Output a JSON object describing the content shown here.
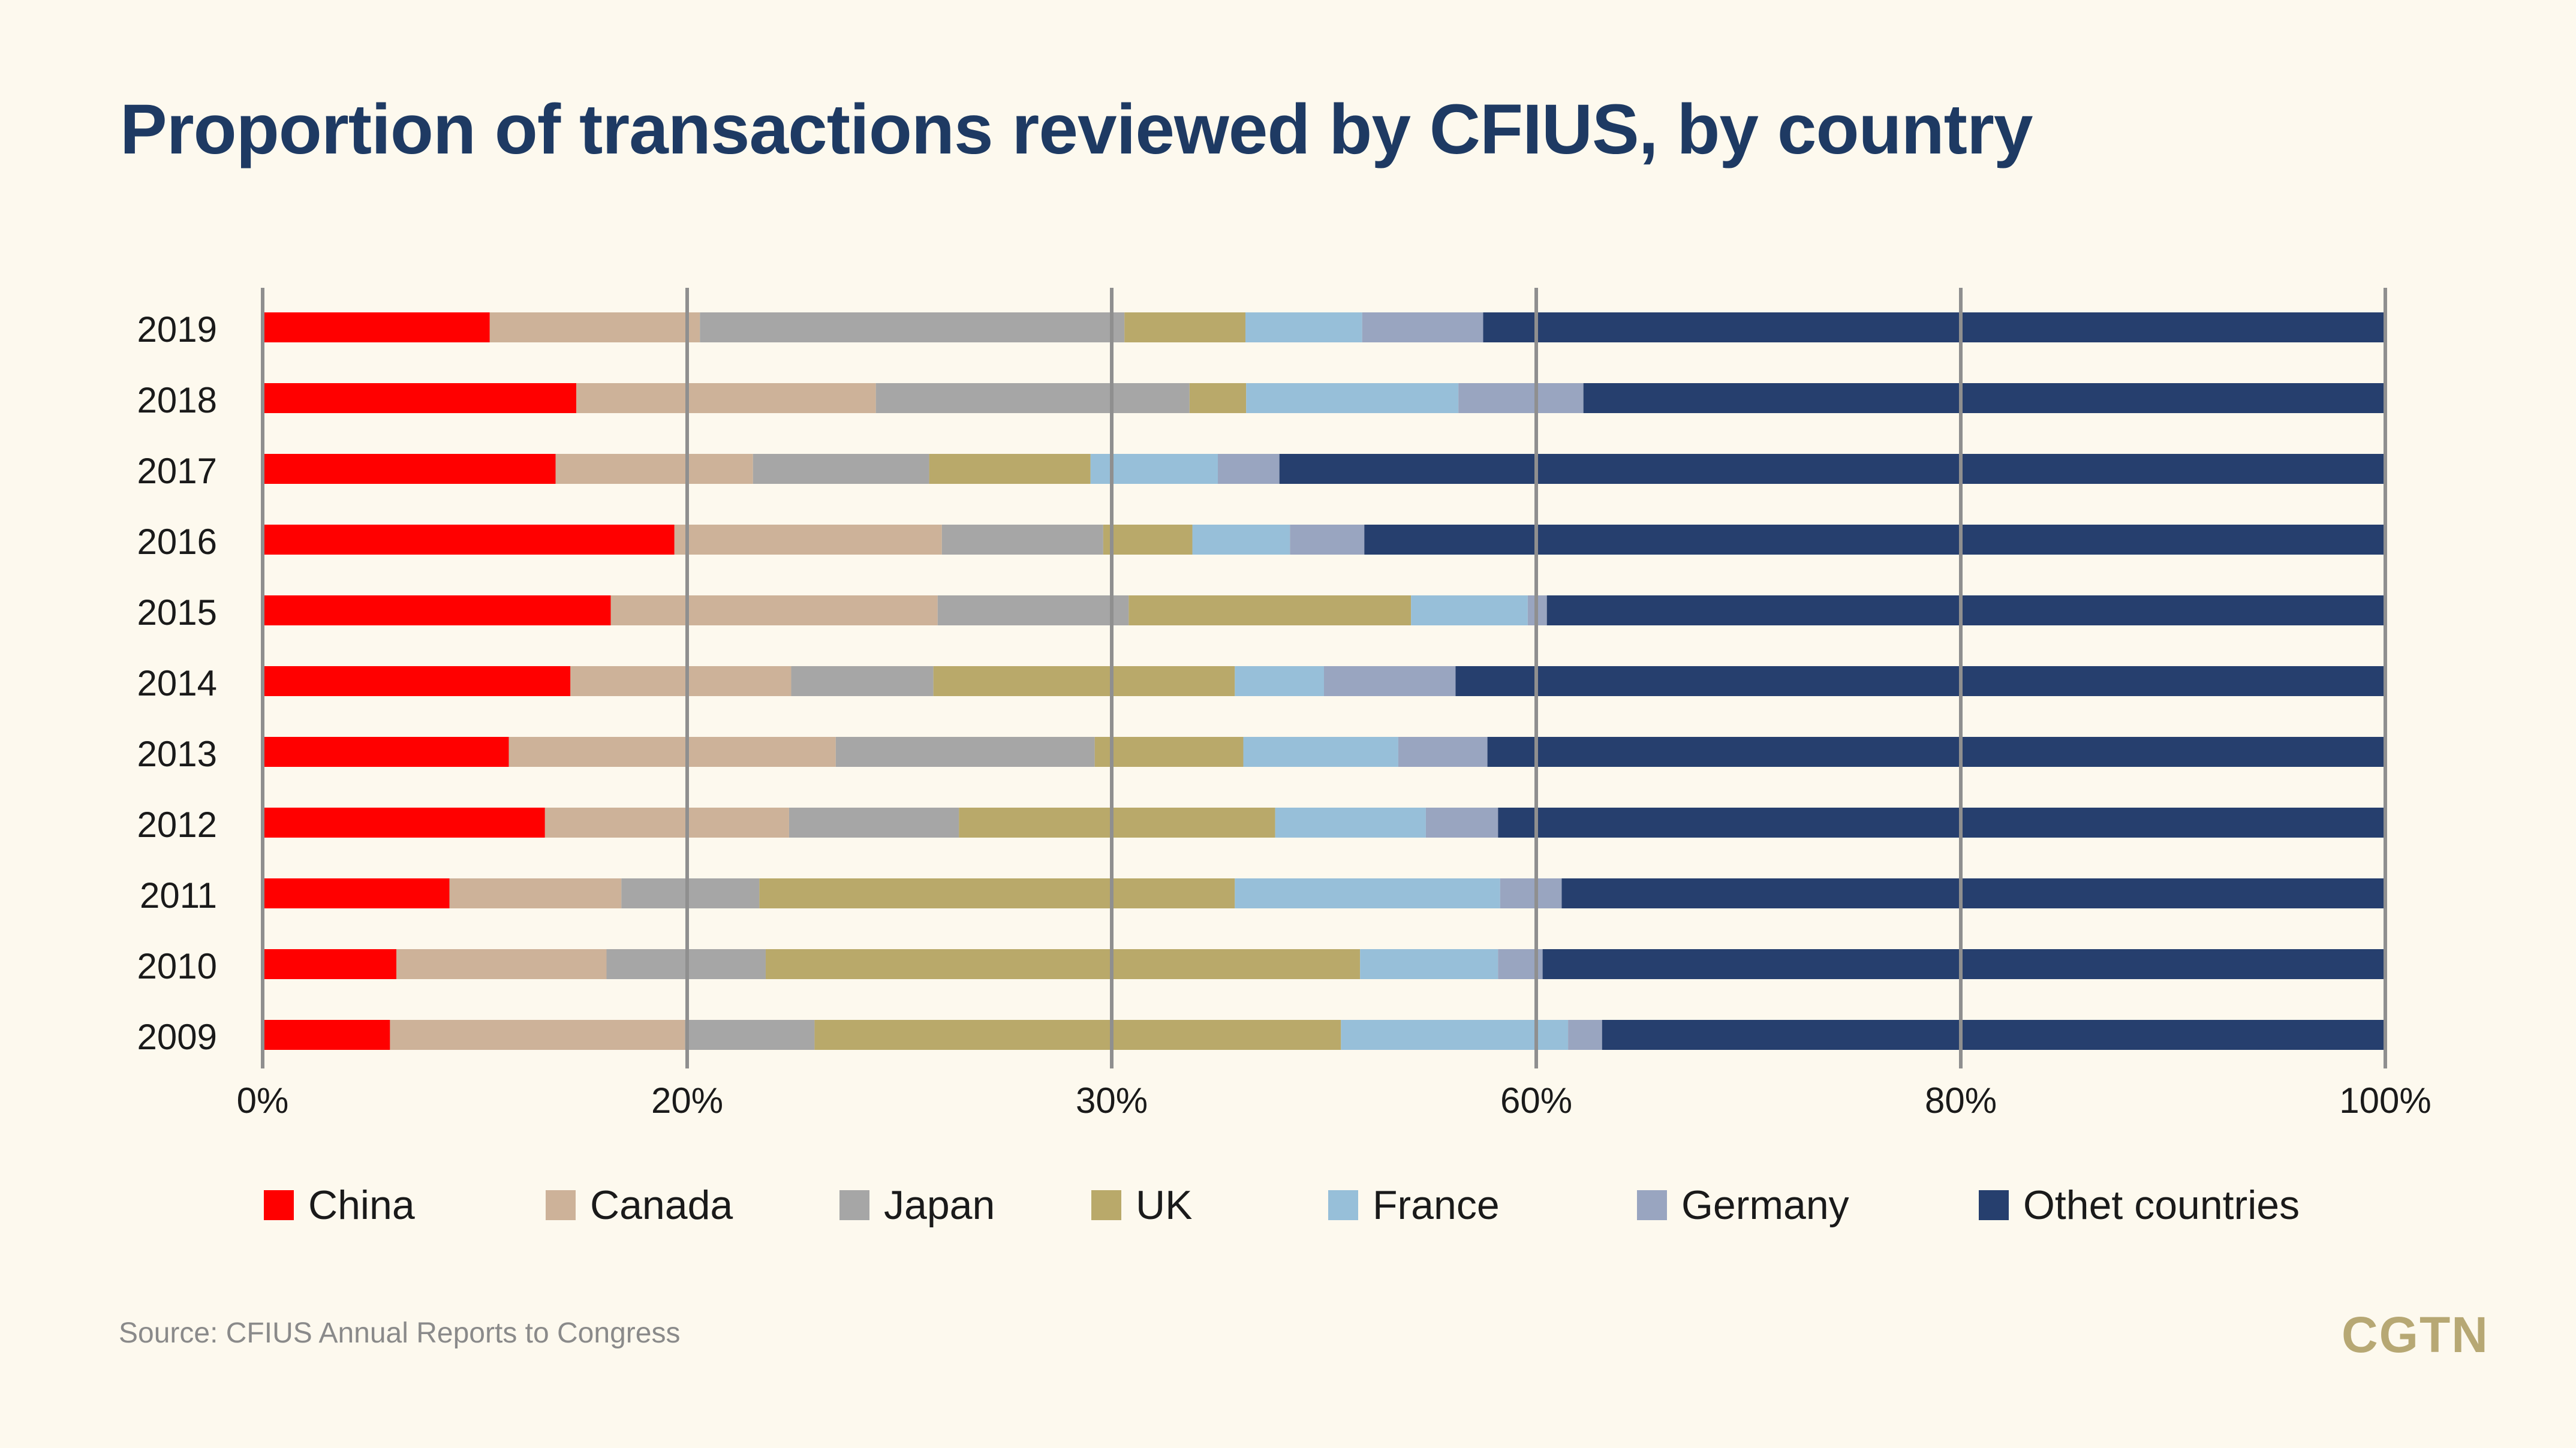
{
  "title": "Proportion of transactions reviewed by CFIUS, by country",
  "source": "Source: CFIUS Annual Reports to Congress",
  "logo": "CGTN",
  "chart_data": {
    "type": "bar",
    "orientation": "horizontal",
    "stacked": true,
    "title": "Proportion of transactions reviewed by CFIUS, by country",
    "categories": [
      "2019",
      "2018",
      "2017",
      "2016",
      "2015",
      "2014",
      "2013",
      "2012",
      "2011",
      "2010",
      "2009"
    ],
    "x_tick_labels": [
      "0%",
      "20%",
      "30%",
      "60%",
      "80%",
      "100%"
    ],
    "xlim": [
      0,
      100
    ],
    "grid": true,
    "legend_position": "bottom",
    "series": [
      {
        "name": "China",
        "color": "#ff0000",
        "values": [
          10.7,
          13.3,
          13.8,
          19.4,
          16.4,
          14.5,
          11.6,
          13.3,
          8.8,
          6.3,
          6.0
        ]
      },
      {
        "name": "Canada",
        "color": "#cdb299",
        "values": [
          9.9,
          12.7,
          9.3,
          12.6,
          15.4,
          10.4,
          15.4,
          11.5,
          8.1,
          9.9,
          13.9
        ]
      },
      {
        "name": "Japan",
        "color": "#a6a6a6",
        "values": [
          20.0,
          13.3,
          8.3,
          7.6,
          9.0,
          6.7,
          12.2,
          8.0,
          6.5,
          7.5,
          6.1
        ]
      },
      {
        "name": "UK",
        "color": "#b9a96a",
        "values": [
          5.7,
          2.4,
          7.6,
          4.2,
          13.3,
          14.2,
          7.0,
          14.9,
          22.4,
          28.0,
          24.8
        ]
      },
      {
        "name": "France",
        "color": "#97bfd9",
        "values": [
          5.5,
          9.0,
          6.0,
          4.6,
          5.5,
          4.2,
          7.3,
          7.1,
          12.5,
          6.5,
          10.7
        ]
      },
      {
        "name": "Germany",
        "color": "#99a5c0",
        "values": [
          5.7,
          5.3,
          2.9,
          3.5,
          0.9,
          6.2,
          4.2,
          3.4,
          2.9,
          2.1,
          1.6
        ]
      },
      {
        "name": "Othet countries",
        "color": "#263f6e",
        "values": [
          42.5,
          34.0,
          52.1,
          48.1,
          39.5,
          43.8,
          42.3,
          41.8,
          38.8,
          39.7,
          36.9
        ]
      }
    ]
  }
}
